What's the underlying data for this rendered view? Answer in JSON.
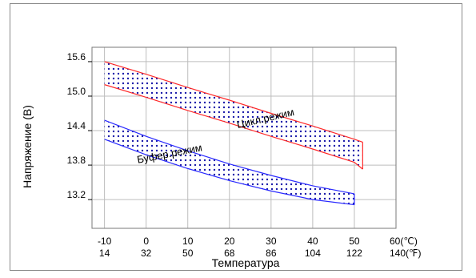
{
  "chart_data": {
    "type": "area",
    "title": "",
    "xlabel": "Температура",
    "ylabel": "Напряжение (В)",
    "xlim": [
      -13,
      60
    ],
    "ylim": [
      12.7,
      15.85
    ],
    "grid": true,
    "x_ticks_c": [
      "-10",
      "0",
      "10",
      "20",
      "30",
      "40",
      "50",
      "60(℃)"
    ],
    "x_ticks_c_values": [
      -10,
      0,
      10,
      20,
      30,
      40,
      50,
      60
    ],
    "x_ticks_f": [
      "14",
      "32",
      "50",
      "68",
      "86",
      "104",
      "122",
      "140(℉)"
    ],
    "y_ticks": [
      "15.6",
      "15.0",
      "14.4",
      "13.8",
      "13.2"
    ],
    "y_tick_values": [
      15.6,
      15.0,
      14.4,
      13.8,
      13.2
    ],
    "series": [
      {
        "name": "Цикл.режим",
        "color": "#ff2a2a",
        "fill_dot_color": "#1a1aaa",
        "x": [
          -10,
          0,
          10,
          20,
          30,
          40,
          50,
          52
        ],
        "upper": [
          15.6,
          15.38,
          15.15,
          14.93,
          14.7,
          14.48,
          14.25,
          14.2
        ],
        "lower": [
          15.2,
          14.98,
          14.75,
          14.53,
          14.3,
          14.08,
          13.85,
          13.73
        ]
      },
      {
        "name": "Буфер.режим",
        "color": "#2a2aff",
        "fill_dot_color": "#1a1aaa",
        "x": [
          -10,
          0,
          10,
          20,
          30,
          40,
          50
        ],
        "upper": [
          14.58,
          14.3,
          14.05,
          13.82,
          13.62,
          13.44,
          13.3
        ],
        "lower": [
          14.25,
          13.98,
          13.74,
          13.53,
          13.35,
          13.2,
          13.11
        ]
      }
    ]
  }
}
